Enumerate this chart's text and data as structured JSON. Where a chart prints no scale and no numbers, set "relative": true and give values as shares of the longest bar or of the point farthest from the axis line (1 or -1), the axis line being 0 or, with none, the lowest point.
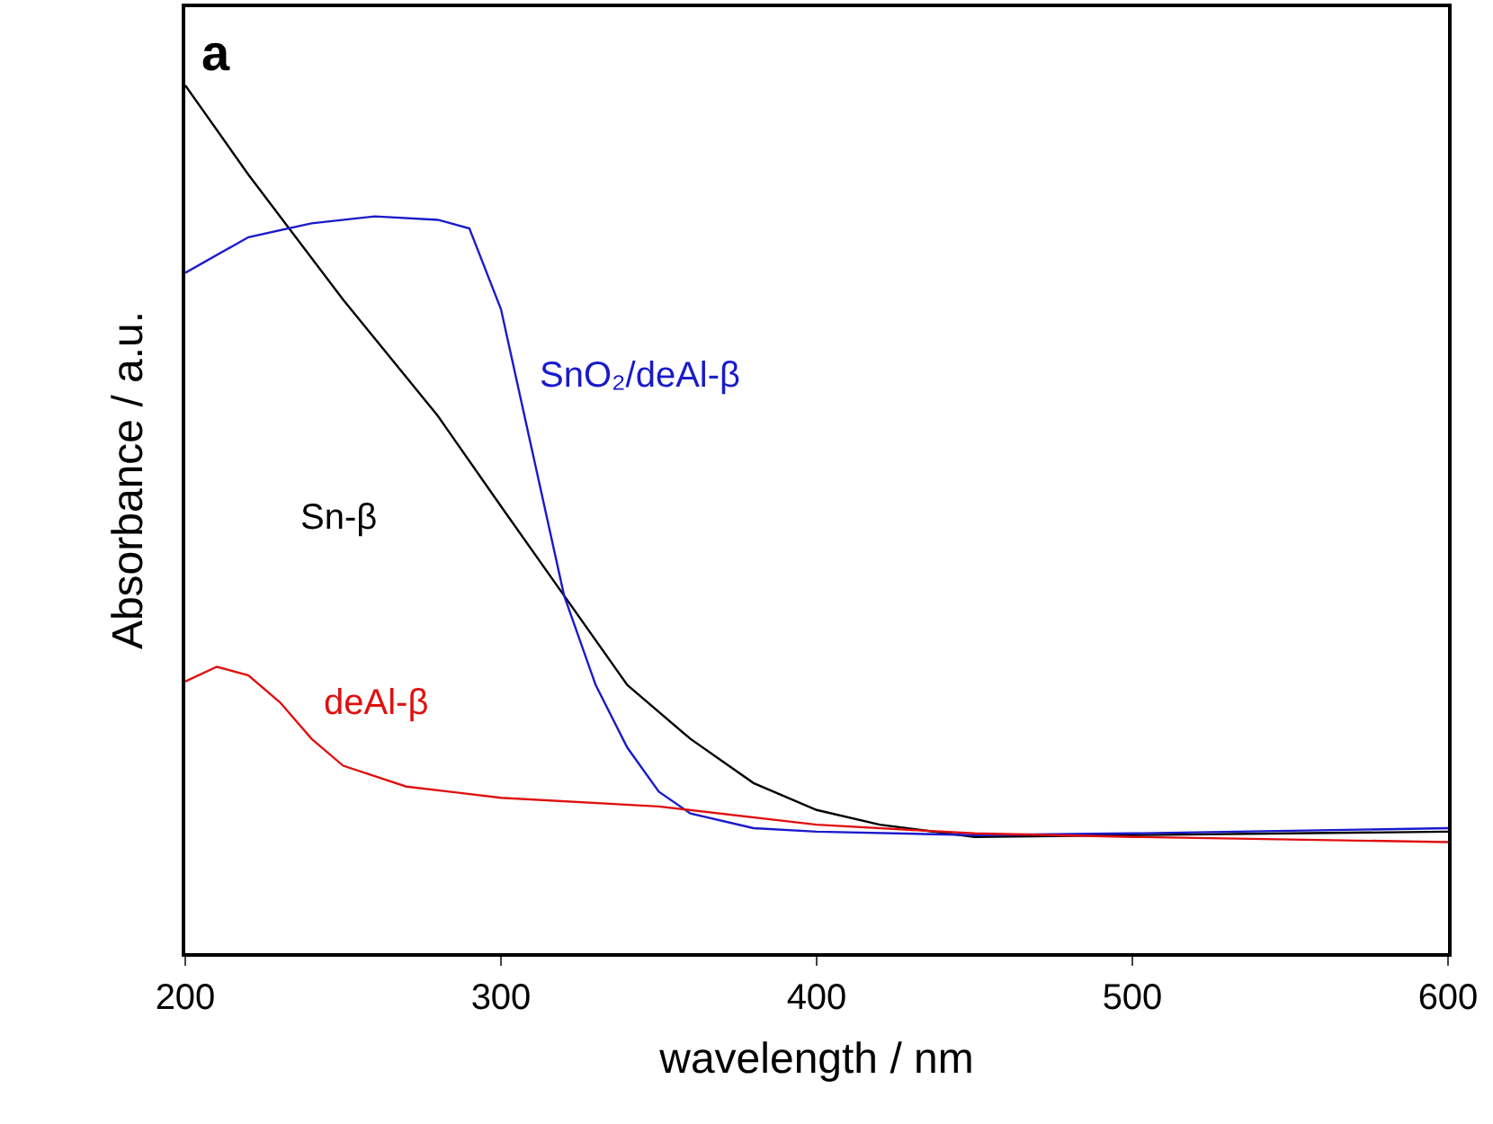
{
  "chart_data": {
    "type": "line",
    "relative": true,
    "xlabel": "wavelength / nm",
    "ylabel": "Absorbance / a.u.",
    "annotations": [
      "a"
    ],
    "xlim": [
      200,
      600
    ],
    "xticks": [
      200,
      300,
      400,
      500,
      600
    ],
    "marker": "none",
    "line_style": "solid",
    "series": [
      {
        "name": "Sn-β",
        "color": "#000000",
        "x": [
          200,
          220,
          250,
          280,
          300,
          320,
          340,
          360,
          380,
          400,
          420,
          450,
          500,
          550,
          600
        ],
        "values": [
          1.0,
          0.897,
          0.753,
          0.619,
          0.515,
          0.412,
          0.309,
          0.247,
          0.196,
          0.165,
          0.148,
          0.134,
          0.136,
          0.138,
          0.14
        ]
      },
      {
        "name": "SnO₂/deAl-β",
        "color": "#1a1acc",
        "x": [
          200,
          220,
          240,
          260,
          280,
          290,
          300,
          310,
          320,
          330,
          340,
          350,
          360,
          380,
          400,
          450,
          500,
          600
        ],
        "values": [
          0.784,
          0.825,
          0.841,
          0.849,
          0.845,
          0.835,
          0.742,
          0.577,
          0.412,
          0.309,
          0.237,
          0.186,
          0.161,
          0.144,
          0.14,
          0.136,
          0.138,
          0.144
        ]
      },
      {
        "name": "deAl-β",
        "color": "#e01010",
        "x": [
          200,
          210,
          220,
          230,
          240,
          250,
          270,
          300,
          350,
          400,
          450,
          500,
          600
        ],
        "values": [
          0.313,
          0.33,
          0.32,
          0.289,
          0.247,
          0.216,
          0.192,
          0.179,
          0.169,
          0.148,
          0.138,
          0.134,
          0.128
        ]
      }
    ]
  }
}
